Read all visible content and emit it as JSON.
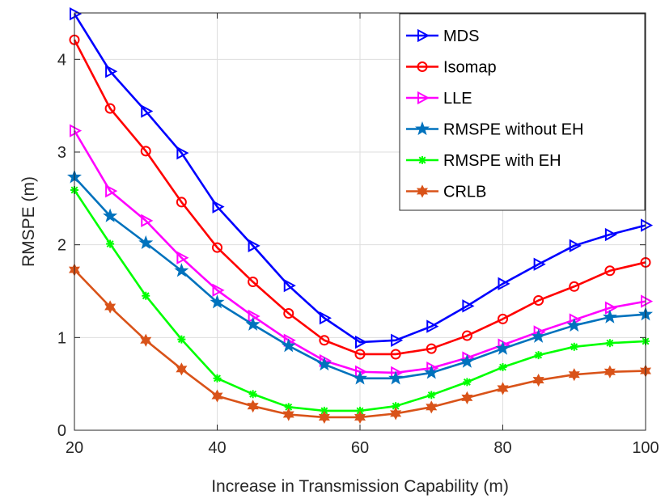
{
  "chart_data": {
    "type": "line",
    "title": "",
    "xlabel": "Increase in Transmission Capability (m)",
    "ylabel": "RMSPE (m)",
    "xlim": [
      20,
      100
    ],
    "ylim": [
      0,
      4.5
    ],
    "xticks": [
      20,
      40,
      60,
      80,
      100
    ],
    "yticks": [
      0,
      1,
      2,
      3,
      4
    ],
    "xtick_labels": [
      "20",
      "40",
      "60",
      "80",
      "100"
    ],
    "ytick_labels": [
      "0",
      "1",
      "2",
      "3",
      "4"
    ],
    "grid": true,
    "legend_position": "top-right",
    "x": [
      20,
      25,
      30,
      35,
      40,
      45,
      50,
      55,
      60,
      65,
      70,
      75,
      80,
      85,
      90,
      95,
      100
    ],
    "series": [
      {
        "name": "MDS",
        "color": "#0000ff",
        "marker": "triangle-right",
        "values": [
          4.49,
          3.87,
          3.44,
          2.99,
          2.41,
          1.99,
          1.56,
          1.21,
          0.95,
          0.97,
          1.12,
          1.34,
          1.58,
          1.79,
          1.99,
          2.11,
          2.21
        ]
      },
      {
        "name": "Isomap",
        "color": "#ff0000",
        "marker": "circle",
        "values": [
          4.21,
          3.47,
          3.01,
          2.46,
          1.97,
          1.6,
          1.26,
          0.97,
          0.82,
          0.82,
          0.88,
          1.02,
          1.2,
          1.4,
          1.55,
          1.72,
          1.81
        ]
      },
      {
        "name": "LLE",
        "color": "#ff00ff",
        "marker": "triangle-right",
        "values": [
          3.23,
          2.58,
          2.26,
          1.86,
          1.51,
          1.23,
          0.97,
          0.75,
          0.63,
          0.62,
          0.67,
          0.78,
          0.92,
          1.06,
          1.19,
          1.32,
          1.39
        ]
      },
      {
        "name": "RMSPE without EH",
        "color": "#0072bd",
        "marker": "star",
        "values": [
          2.73,
          2.31,
          2.02,
          1.72,
          1.38,
          1.14,
          0.91,
          0.71,
          0.56,
          0.56,
          0.62,
          0.74,
          0.88,
          1.01,
          1.13,
          1.22,
          1.25
        ]
      },
      {
        "name": "RMSPE with EH",
        "color": "#00ff00",
        "marker": "asterisk",
        "values": [
          2.59,
          2.01,
          1.45,
          0.98,
          0.56,
          0.39,
          0.25,
          0.21,
          0.21,
          0.26,
          0.38,
          0.52,
          0.68,
          0.81,
          0.9,
          0.94,
          0.96
        ]
      },
      {
        "name": "CRLB",
        "color": "#d95319",
        "marker": "hexagram",
        "values": [
          1.73,
          1.33,
          0.97,
          0.66,
          0.37,
          0.26,
          0.17,
          0.14,
          0.14,
          0.18,
          0.25,
          0.35,
          0.45,
          0.54,
          0.6,
          0.63,
          0.64
        ]
      }
    ]
  }
}
